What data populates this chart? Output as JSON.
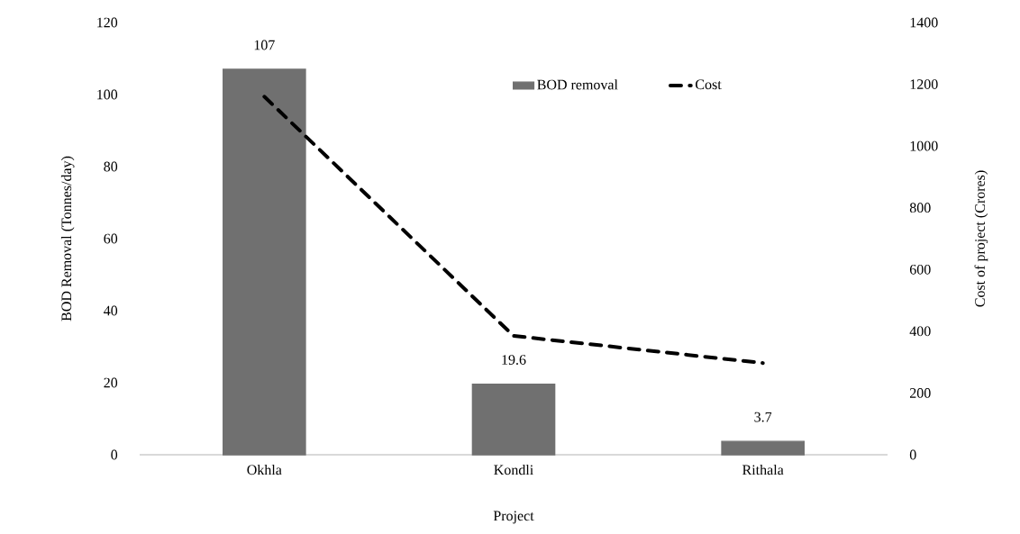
{
  "chart_data": {
    "type": "bar",
    "xlabel": "Project",
    "ylabel": "BOD Removal (Tonnes/day)",
    "y2label": "Cost of project (Crores)",
    "categories": [
      "Okhla",
      "Kondli",
      "Rithala"
    ],
    "series": [
      {
        "name": "BOD removal",
        "color": "#707070",
        "values": [
          107,
          19.6,
          3.7
        ],
        "value_labels": [
          "107",
          "19.6",
          "3.7"
        ]
      },
      {
        "name": "Cost",
        "type": "line",
        "axis": "y2",
        "color": "#000000",
        "line_style": "dashed",
        "values": [
          1160,
          385,
          297
        ]
      }
    ],
    "ylim": [
      0,
      120
    ],
    "yticks": [
      0,
      20,
      40,
      60,
      80,
      100,
      120
    ],
    "y2lim": [
      0,
      1400
    ],
    "y2ticks": [
      0,
      200,
      400,
      600,
      800,
      1000,
      1200,
      1400
    ],
    "legend": "top right"
  }
}
